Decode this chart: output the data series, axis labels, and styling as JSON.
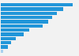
{
  "values": [
    95,
    82,
    74,
    68,
    62,
    55,
    38,
    30,
    20,
    14,
    9,
    3
  ],
  "bar_color": "#2196d9",
  "last_bar_color": "#a8d0ee",
  "background_color": "#f2f2f2",
  "grid_color": "#ffffff",
  "xlim": [
    0,
    100
  ],
  "n_bars": 12
}
